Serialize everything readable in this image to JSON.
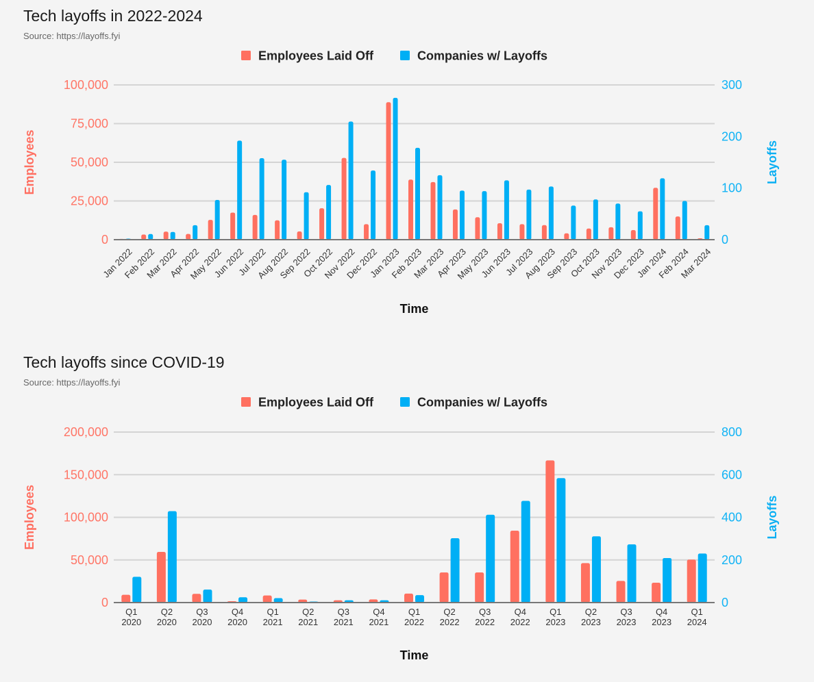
{
  "chart_data": [
    {
      "type": "bar",
      "title": "Tech layoffs in 2022-2024",
      "subtitle": "Source: https://layoffs.fyi",
      "xlabel": "Time",
      "ylabel": "Employees",
      "y2label": "Layoffs",
      "ylim": [
        0,
        100000
      ],
      "y2lim": [
        0,
        300
      ],
      "yticks": [
        "0",
        "25,000",
        "50,000",
        "75,000",
        "100,000"
      ],
      "ytick_values": [
        0,
        25000,
        50000,
        75000,
        100000
      ],
      "y2ticks": [
        "0",
        "100",
        "200",
        "300"
      ],
      "y2tick_values": [
        0,
        100,
        200,
        300
      ],
      "grid": true,
      "legend_position": "top-center",
      "x_label_rotation": "diagonal",
      "categories": [
        "Jan 2022",
        "Feb 2022",
        "Mar 2022",
        "Apr 2022",
        "May 2022",
        "Jun 2022",
        "Jul 2022",
        "Aug 2022",
        "Sep 2022",
        "Oct 2022",
        "Nov 2022",
        "Dec 2022",
        "Jan 2023",
        "Feb 2023",
        "Mar 2023",
        "Apr 2023",
        "May 2023",
        "Jun 2023",
        "Jul 2023",
        "Aug 2023",
        "Sep 2023",
        "Oct 2023",
        "Nov 2023",
        "Dec 2023",
        "Jan 2024",
        "Feb 2024",
        "Mar 2024"
      ],
      "series": [
        {
          "name": "Employees Laid Off",
          "axis": "left",
          "color": "#ff7060",
          "values": [
            500,
            3300,
            5200,
            3700,
            12800,
            17500,
            16000,
            12500,
            5300,
            20300,
            52800,
            10000,
            88800,
            38800,
            37200,
            19500,
            14500,
            10600,
            10000,
            9400,
            4100,
            7200,
            8000,
            6200,
            33500,
            15000,
            900
          ]
        },
        {
          "name": "Companies w/ Layoffs",
          "axis": "right",
          "color": "#00aff5",
          "values": [
            2,
            11,
            15,
            28,
            77,
            192,
            158,
            155,
            92,
            106,
            229,
            134,
            275,
            178,
            125,
            95,
            94,
            115,
            97,
            103,
            66,
            78,
            70,
            55,
            119,
            75,
            28
          ]
        }
      ]
    },
    {
      "type": "bar",
      "title": "Tech layoffs since COVID-19",
      "subtitle": "Source: https://layoffs.fyi",
      "xlabel": "Time",
      "ylabel": "Employees",
      "y2label": "Layoffs",
      "ylim": [
        0,
        200000
      ],
      "y2lim": [
        0,
        800
      ],
      "yticks": [
        "0",
        "50,000",
        "100,000",
        "150,000",
        "200,000"
      ],
      "ytick_values": [
        0,
        50000,
        100000,
        150000,
        200000
      ],
      "y2ticks": [
        "0",
        "200",
        "400",
        "600",
        "800"
      ],
      "y2tick_values": [
        0,
        200,
        400,
        600,
        800
      ],
      "grid": true,
      "legend_position": "top-center",
      "x_label_rotation": "none",
      "categories": [
        "Q1 2020",
        "Q2 2020",
        "Q3 2020",
        "Q4 2020",
        "Q1 2021",
        "Q2 2021",
        "Q3 2021",
        "Q4 2021",
        "Q1 2022",
        "Q2 2022",
        "Q3 2022",
        "Q4 2022",
        "Q1 2023",
        "Q2 2023",
        "Q3 2023",
        "Q4 2023",
        "Q1 2024"
      ],
      "series": [
        {
          "name": "Employees Laid Off",
          "axis": "left",
          "color": "#ff7060",
          "values": [
            9100,
            59400,
            10200,
            1600,
            8300,
            3500,
            2700,
            3700,
            10500,
            35300,
            35300,
            84300,
            166800,
            46300,
            25400,
            23300,
            50400
          ]
        },
        {
          "name": "Companies w/ Layoffs",
          "axis": "right",
          "color": "#00aff5",
          "values": [
            121,
            429,
            61,
            25,
            21,
            5,
            11,
            11,
            35,
            302,
            412,
            477,
            584,
            311,
            273,
            209,
            230
          ]
        }
      ]
    }
  ]
}
